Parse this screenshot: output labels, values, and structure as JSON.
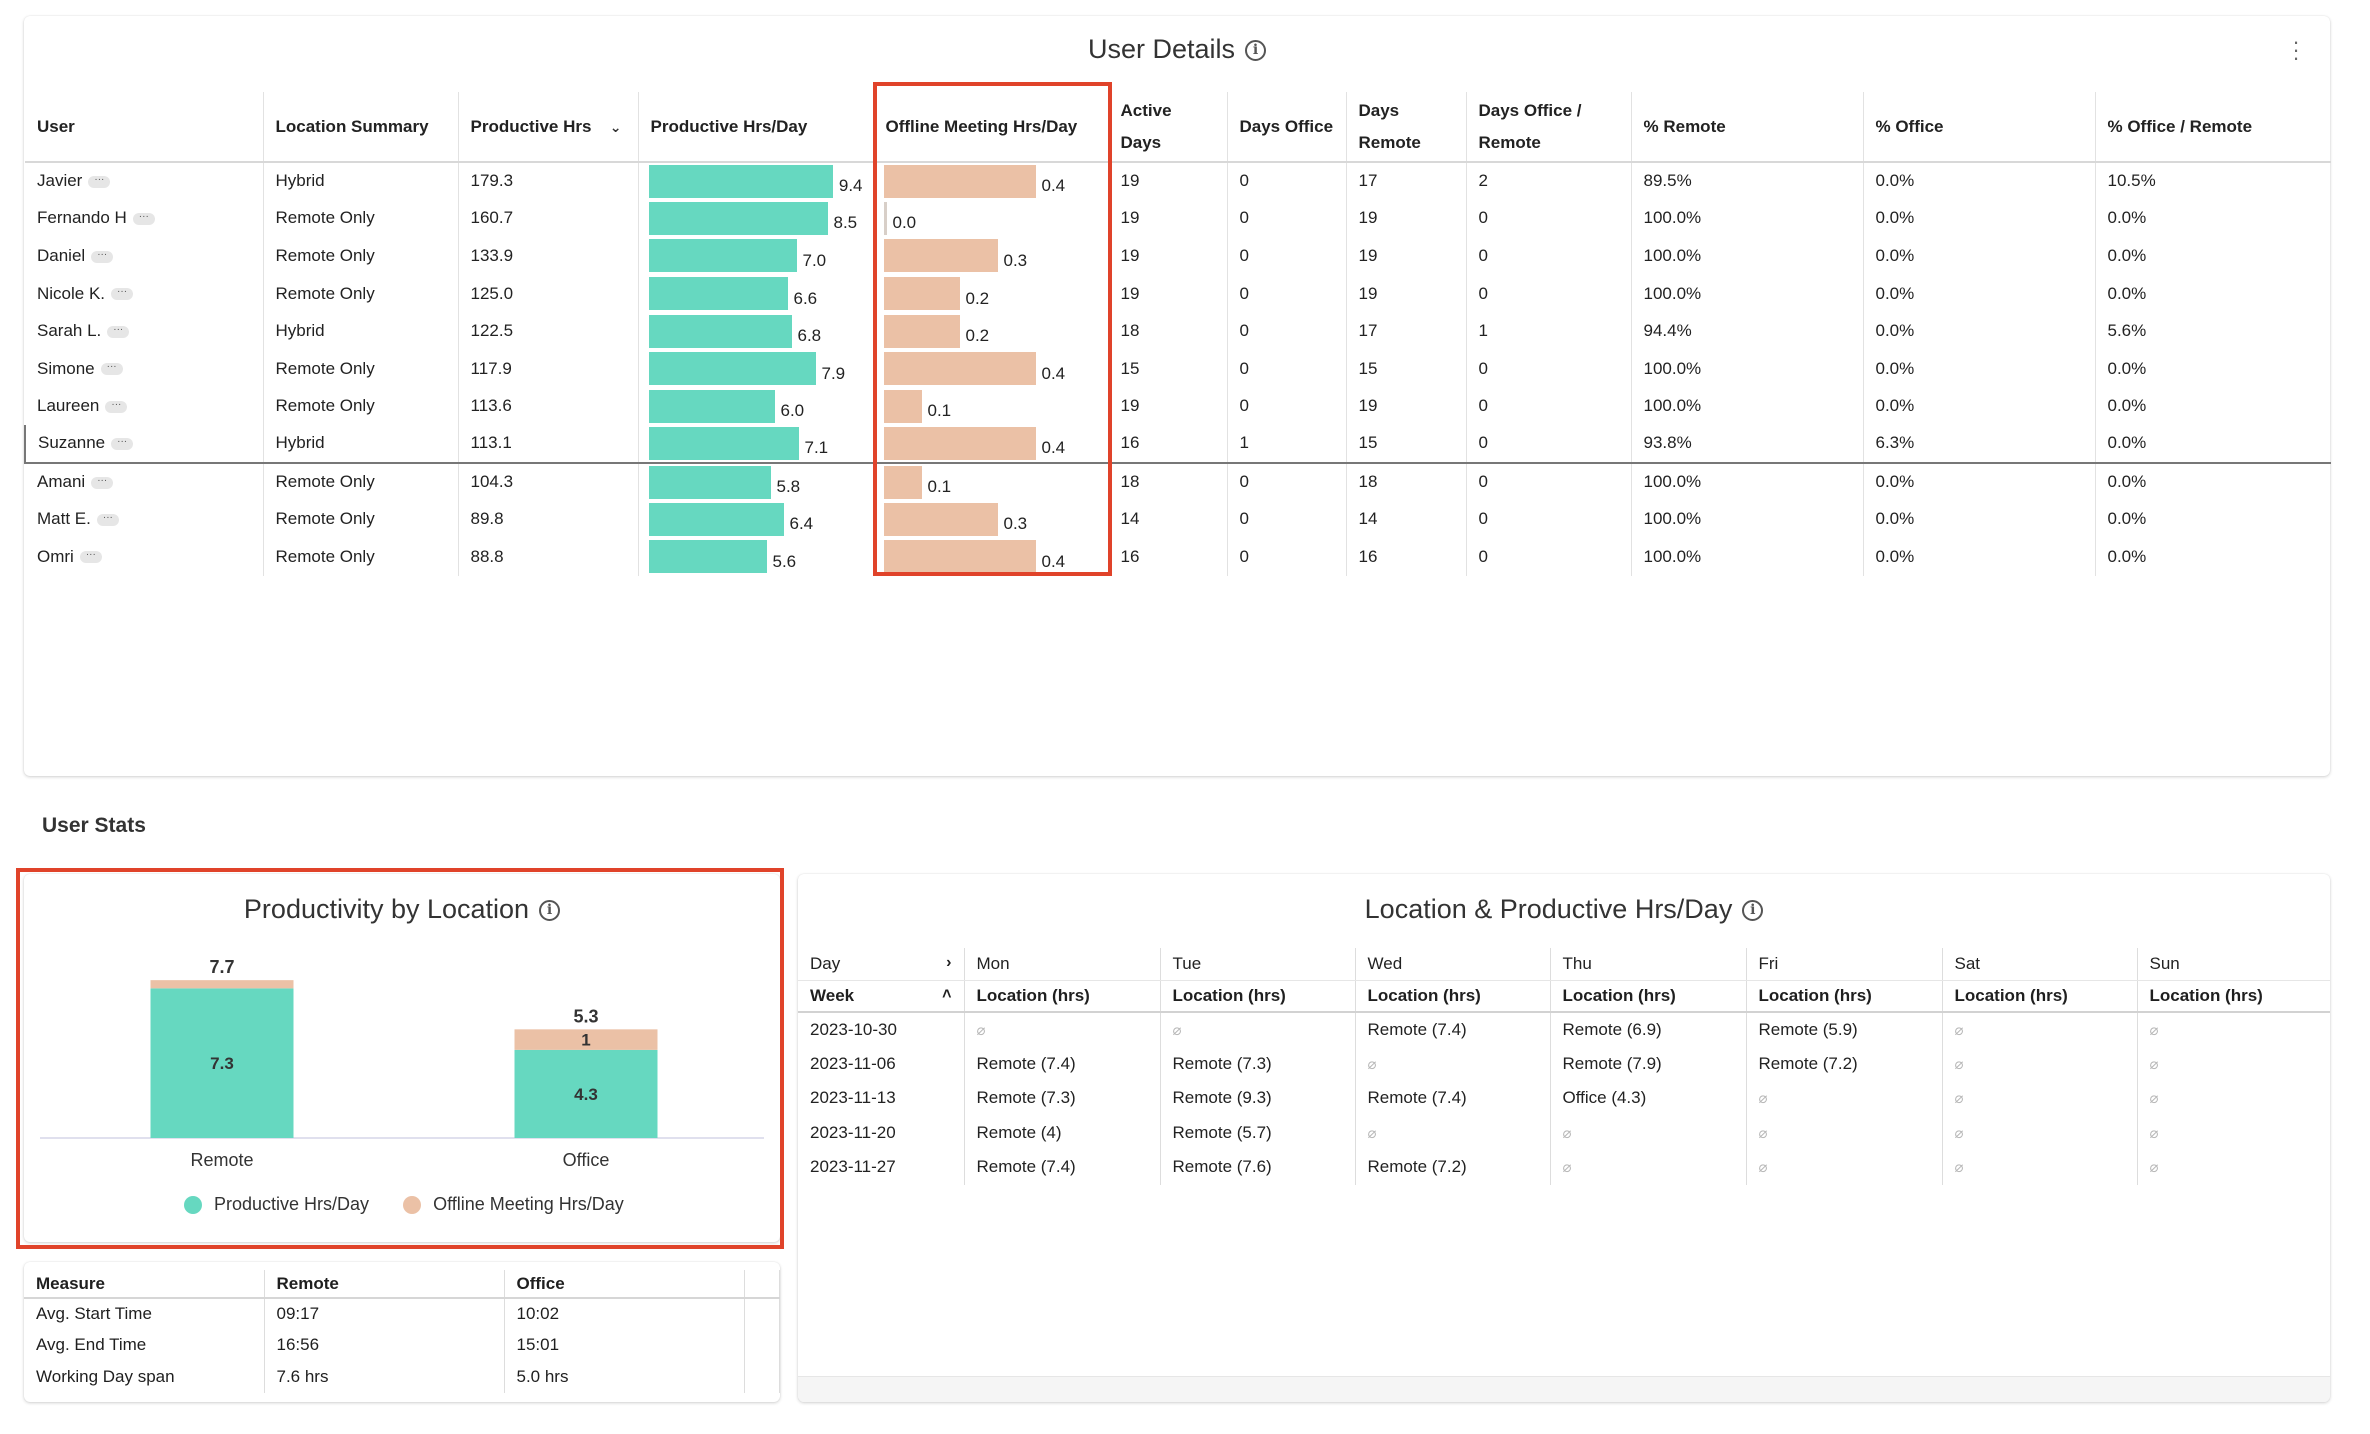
{
  "user_details": {
    "title": "User Details",
    "columns": [
      "User",
      "Location Summary",
      "Productive Hrs",
      "Productive Hrs/Day",
      "Offline Meeting Hrs/Day",
      "Active Days",
      "Days Office",
      "Days Remote",
      "Days Office / Remote",
      "% Remote",
      "% Office",
      "% Office / Remote"
    ],
    "sorted_column": "Productive Hrs",
    "highlighted_column": "Offline Meeting Hrs/Day",
    "bar_colors": {
      "productive": "#66d8c0",
      "offline": "#ebc1a6"
    },
    "rows": [
      {
        "user": "Javier",
        "location": "Hybrid",
        "prod_hrs": "179.3",
        "prod_day": 9.4,
        "prod_day_label": "9.4",
        "offline": 0.4,
        "offline_label": "0.4",
        "active": "19",
        "office": "0",
        "remote": "17",
        "office_remote": "2",
        "pct_remote": "89.5%",
        "pct_office": "0.0%",
        "pct_office_remote": "10.5%"
      },
      {
        "user": "Fernando H",
        "location": "Remote Only",
        "prod_hrs": "160.7",
        "prod_day": 8.5,
        "prod_day_label": "8.5",
        "offline": 0.0,
        "offline_label": "0.0",
        "active": "19",
        "office": "0",
        "remote": "19",
        "office_remote": "0",
        "pct_remote": "100.0%",
        "pct_office": "0.0%",
        "pct_office_remote": "0.0%"
      },
      {
        "user": "Daniel",
        "location": "Remote Only",
        "prod_hrs": "133.9",
        "prod_day": 7.0,
        "prod_day_label": "7.0",
        "offline": 0.3,
        "offline_label": "0.3",
        "active": "19",
        "office": "0",
        "remote": "19",
        "office_remote": "0",
        "pct_remote": "100.0%",
        "pct_office": "0.0%",
        "pct_office_remote": "0.0%"
      },
      {
        "user": "Nicole K.",
        "location": "Remote Only",
        "prod_hrs": "125.0",
        "prod_day": 6.6,
        "prod_day_label": "6.6",
        "offline": 0.2,
        "offline_label": "0.2",
        "active": "19",
        "office": "0",
        "remote": "19",
        "office_remote": "0",
        "pct_remote": "100.0%",
        "pct_office": "0.0%",
        "pct_office_remote": "0.0%"
      },
      {
        "user": "Sarah L.",
        "location": "Hybrid",
        "prod_hrs": "122.5",
        "prod_day": 6.8,
        "prod_day_label": "6.8",
        "offline": 0.2,
        "offline_label": "0.2",
        "active": "18",
        "office": "0",
        "remote": "17",
        "office_remote": "1",
        "pct_remote": "94.4%",
        "pct_office": "0.0%",
        "pct_office_remote": "5.6%"
      },
      {
        "user": "Simone",
        "location": "Remote Only",
        "prod_hrs": "117.9",
        "prod_day": 7.9,
        "prod_day_label": "7.9",
        "offline": 0.4,
        "offline_label": "0.4",
        "active": "15",
        "office": "0",
        "remote": "15",
        "office_remote": "0",
        "pct_remote": "100.0%",
        "pct_office": "0.0%",
        "pct_office_remote": "0.0%"
      },
      {
        "user": "Laureen",
        "location": "Remote Only",
        "prod_hrs": "113.6",
        "prod_day": 6.0,
        "prod_day_label": "6.0",
        "offline": 0.1,
        "offline_label": "0.1",
        "active": "19",
        "office": "0",
        "remote": "19",
        "office_remote": "0",
        "pct_remote": "100.0%",
        "pct_office": "0.0%",
        "pct_office_remote": "0.0%"
      },
      {
        "user": "Suzanne",
        "location": "Hybrid",
        "prod_hrs": "113.1",
        "prod_day": 7.1,
        "prod_day_label": "7.1",
        "offline": 0.4,
        "offline_label": "0.4",
        "active": "16",
        "office": "1",
        "remote": "15",
        "office_remote": "0",
        "pct_remote": "93.8%",
        "pct_office": "6.3%",
        "pct_office_remote": "0.0%"
      },
      {
        "user": "Amani",
        "location": "Remote Only",
        "prod_hrs": "104.3",
        "prod_day": 5.8,
        "prod_day_label": "5.8",
        "offline": 0.1,
        "offline_label": "0.1",
        "active": "18",
        "office": "0",
        "remote": "18",
        "office_remote": "0",
        "pct_remote": "100.0%",
        "pct_office": "0.0%",
        "pct_office_remote": "0.0%"
      },
      {
        "user": "Matt E.",
        "location": "Remote Only",
        "prod_hrs": "89.8",
        "prod_day": 6.4,
        "prod_day_label": "6.4",
        "offline": 0.3,
        "offline_label": "0.3",
        "active": "14",
        "office": "0",
        "remote": "14",
        "office_remote": "0",
        "pct_remote": "100.0%",
        "pct_office": "0.0%",
        "pct_office_remote": "0.0%"
      },
      {
        "user": "Omri",
        "location": "Remote Only",
        "prod_hrs": "88.8",
        "prod_day": 5.6,
        "prod_day_label": "5.6",
        "offline": 0.4,
        "offline_label": "0.4",
        "active": "16",
        "office": "0",
        "remote": "16",
        "office_remote": "0",
        "pct_remote": "100.0%",
        "pct_office": "0.0%",
        "pct_office_remote": "0.0%"
      }
    ],
    "selected_row": "Suzanne",
    "more_glyph": "···"
  },
  "section_label": "User Stats",
  "productivity_chart": {
    "title": "Productivity by Location",
    "legend": [
      "Productive Hrs/Day",
      "Offline Meeting Hrs/Day"
    ]
  },
  "chart_data": {
    "type": "bar",
    "stacked": true,
    "title": "Productivity by Location",
    "categories": [
      "Remote",
      "Office"
    ],
    "series": [
      {
        "name": "Productive Hrs/Day",
        "values": [
          7.3,
          4.3
        ],
        "color": "#66d8c0"
      },
      {
        "name": "Offline Meeting Hrs/Day",
        "values": [
          0.4,
          1.0
        ],
        "color": "#ebc1a6"
      }
    ],
    "segment_labels": [
      [
        "7.3",
        "4.3"
      ],
      [
        "",
        "1"
      ]
    ],
    "totals": [
      7.7,
      5.3
    ],
    "total_labels": [
      "7.7",
      "5.3"
    ],
    "ylim": [
      0,
      8
    ],
    "grid": false,
    "legend_position": "bottom"
  },
  "measure_table": {
    "columns": [
      "Measure",
      "Remote",
      "Office"
    ],
    "rows": [
      [
        "Avg. Start Time",
        "09:17",
        "10:02"
      ],
      [
        "Avg. End Time",
        "16:56",
        "15:01"
      ],
      [
        "Working Day span",
        "7.6 hrs",
        "5.0 hrs"
      ]
    ]
  },
  "location_table": {
    "title": "Location & Productive Hrs/Day",
    "header_day": "Day",
    "header_week": "Week",
    "days": [
      "Mon",
      "Tue",
      "Wed",
      "Thu",
      "Fri",
      "Sat",
      "Sun"
    ],
    "sub_header": "Location (hrs)",
    "null_symbol": "⌀",
    "rows": [
      {
        "week": "2023-10-30",
        "cells": [
          null,
          null,
          "Remote (7.4)",
          "Remote (6.9)",
          "Remote (5.9)",
          null,
          null
        ]
      },
      {
        "week": "2023-11-06",
        "cells": [
          "Remote (7.4)",
          "Remote (7.3)",
          null,
          "Remote (7.9)",
          "Remote (7.2)",
          null,
          null
        ]
      },
      {
        "week": "2023-11-13",
        "cells": [
          "Remote (7.3)",
          "Remote (9.3)",
          "Remote (7.4)",
          "Office (4.3)",
          null,
          null,
          null
        ]
      },
      {
        "week": "2023-11-20",
        "cells": [
          "Remote (4)",
          "Remote (5.7)",
          null,
          null,
          null,
          null,
          null
        ]
      },
      {
        "week": "2023-11-27",
        "cells": [
          "Remote (7.4)",
          "Remote (7.6)",
          "Remote (7.2)",
          null,
          null,
          null,
          null
        ]
      }
    ]
  },
  "colors": {
    "highlight_border": "#e0432a",
    "productive": "#66d8c0",
    "offline": "#ebc1a6"
  }
}
